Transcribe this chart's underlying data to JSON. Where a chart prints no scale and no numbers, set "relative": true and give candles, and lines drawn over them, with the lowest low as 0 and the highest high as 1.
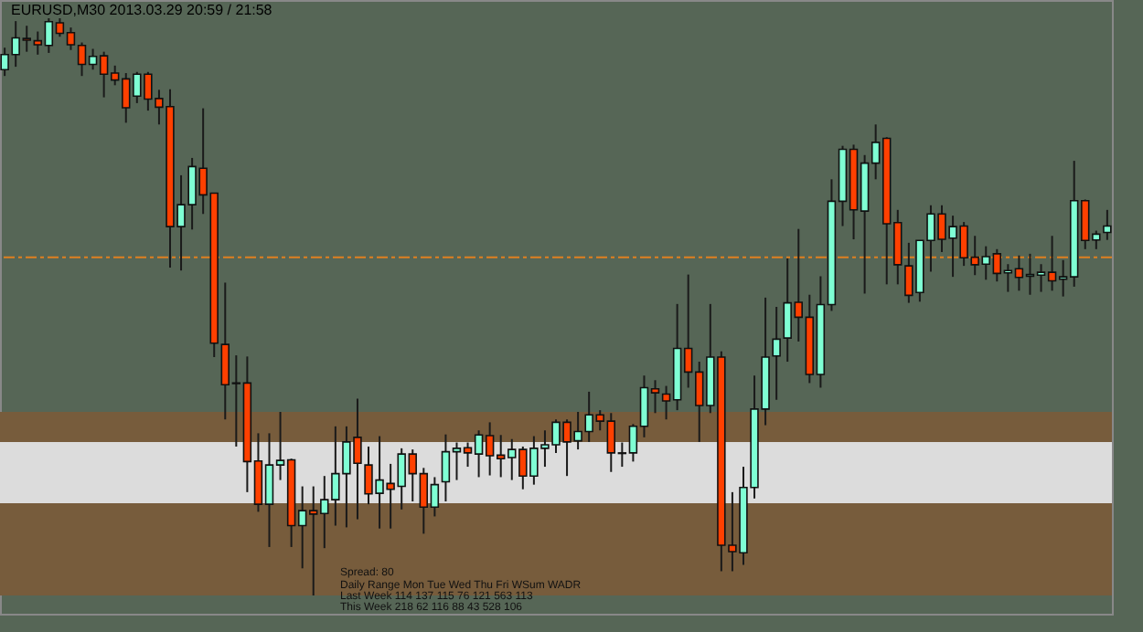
{
  "chart_data": {
    "type": "candlestick",
    "title": "EURUSD,M30  2013.03.29  20:59 / 21:58",
    "relative": true,
    "tick_labels": false,
    "categories": [
      null,
      null,
      null,
      null,
      null,
      null,
      null,
      null,
      null,
      null,
      null,
      null,
      null,
      null,
      null,
      null,
      null,
      null,
      null,
      null,
      null,
      null,
      null,
      null,
      null,
      null,
      null,
      null,
      null,
      null,
      null,
      null,
      null,
      null,
      null,
      null,
      null,
      null,
      null,
      null,
      null,
      null,
      null,
      null,
      null,
      null,
      null,
      null,
      null,
      null,
      null,
      null,
      null,
      null,
      null,
      null,
      null,
      null,
      null,
      null,
      null,
      null,
      null,
      null,
      null,
      null,
      null,
      null,
      null,
      null,
      null,
      null,
      null,
      null,
      null,
      null,
      null,
      null,
      null,
      null,
      null,
      null,
      null,
      null,
      null,
      null,
      null,
      null,
      null,
      null,
      null,
      null,
      null,
      null,
      null,
      null,
      null,
      null,
      null,
      null,
      null
    ],
    "colors": [
      "#7fffd4",
      "#7fffd4",
      "#ff4000",
      "#ff4000",
      "#7fffd4",
      "#ff4000",
      "#ff4000",
      "#ff4000",
      "#7fffd4",
      "#ff4000",
      "#ff4000",
      "#ff4000",
      "#7fffd4",
      "#ff4000",
      "#ff4000",
      "#ff4000",
      "#7fffd4",
      "#7fffd4",
      "#ff4000",
      "#ff4000",
      "#ff4000",
      "#ff4000",
      "#ff4000",
      "#ff4000",
      "#7fffd4",
      "#7fffd4",
      "#ff4000",
      "#7fffd4",
      "#ff4000",
      "#7fffd4",
      "#7fffd4",
      "#7fffd4",
      "#ff4000",
      "#ff4000",
      "#7fffd4",
      "#ff4000",
      "#7fffd4",
      "#ff4000",
      "#ff4000",
      "#7fffd4",
      "#7fffd4",
      "#7fffd4",
      "#ff4000",
      "#7fffd4",
      "#ff4000",
      "#ff4000",
      "#7fffd4",
      "#ff4000",
      "#7fffd4",
      "#7fffd4",
      "#7fffd4",
      "#ff4000",
      "#7fffd4",
      "#7fffd4",
      "#ff4000",
      "#ff4000",
      "#ff4000",
      "#7fffd4",
      "#7fffd4",
      "#ff4000",
      "#ff4000",
      "#7fffd4",
      "#ff4000",
      "#ff4000",
      "#7fffd4",
      "#ff4000",
      "#ff4000",
      "#7fffd4",
      "#7fffd4",
      "#7fffd4",
      "#7fffd4",
      "#7fffd4",
      "#ff4000",
      "#ff4000",
      "#7fffd4",
      "#7fffd4",
      "#7fffd4",
      "#ff4000",
      "#7fffd4",
      "#7fffd4",
      "#ff4000",
      "#ff4000",
      "#ff4000",
      "#7fffd4",
      "#7fffd4",
      "#ff4000",
      "#7fffd4",
      "#ff4000",
      "#ff4000",
      "#7fffd4",
      "#ff4000",
      "#7fffd4",
      "#ff4000",
      "#7fffd4",
      "#7fffd4",
      "#ff4000",
      "#7fffd4",
      "#7fffd4",
      "#ff4000",
      "#7fffd4",
      "#7fffd4"
    ],
    "ohlc": [
      [
        0.911,
        0.949,
        0.9,
        0.937
      ],
      [
        0.937,
        0.995,
        0.916,
        0.966
      ],
      [
        0.965,
        0.987,
        0.942,
        0.962
      ],
      [
        0.961,
        0.977,
        0.937,
        0.954
      ],
      [
        0.953,
        1,
        0.94,
        0.994
      ],
      [
        0.992,
        1,
        0.968,
        0.974
      ],
      [
        0.975,
        0.984,
        0.945,
        0.954
      ],
      [
        0.953,
        0.958,
        0.9,
        0.92
      ],
      [
        0.92,
        0.947,
        0.911,
        0.934
      ],
      [
        0.935,
        0.942,
        0.863,
        0.903
      ],
      [
        0.905,
        0.918,
        0.884,
        0.893
      ],
      [
        0.895,
        0.905,
        0.819,
        0.845
      ],
      [
        0.865,
        0.907,
        0.853,
        0.903
      ],
      [
        0.903,
        0.907,
        0.84,
        0.86
      ],
      [
        0.861,
        0.876,
        0.816,
        0.846
      ],
      [
        0.847,
        0.877,
        0.568,
        0.639
      ],
      [
        0.639,
        0.728,
        0.563,
        0.677
      ],
      [
        0.677,
        0.758,
        0.634,
        0.743
      ],
      [
        0.74,
        0.844,
        0.661,
        0.694
      ],
      [
        0.697,
        0.697,
        0.413,
        0.437
      ],
      [
        0.435,
        0.542,
        0.305,
        0.365
      ],
      [
        0.368,
        0.416,
        0.258,
        0.367
      ],
      [
        0.368,
        0.414,
        0.179,
        0.232
      ],
      [
        0.233,
        0.281,
        0.145,
        0.158
      ],
      [
        0.158,
        0.281,
        0.084,
        0.226
      ],
      [
        0.226,
        0.318,
        0.2,
        0.234
      ],
      [
        0.235,
        0.237,
        0.084,
        0.121
      ],
      [
        0.121,
        0.189,
        0.047,
        0.147
      ],
      [
        0.147,
        0.189,
        0,
        0.141
      ],
      [
        0.142,
        0.207,
        0.082,
        0.166
      ],
      [
        0.166,
        0.293,
        0.121,
        0.211
      ],
      [
        0.211,
        0.293,
        0.118,
        0.266
      ],
      [
        0.274,
        0.341,
        0.132,
        0.229
      ],
      [
        0.226,
        0.258,
        0.158,
        0.176
      ],
      [
        0.177,
        0.276,
        0.116,
        0.2
      ],
      [
        0.194,
        0.228,
        0.116,
        0.184
      ],
      [
        0.189,
        0.255,
        0.149,
        0.245
      ],
      [
        0.245,
        0.253,
        0.163,
        0.211
      ],
      [
        0.211,
        0.221,
        0.107,
        0.153
      ],
      [
        0.153,
        0.205,
        0.137,
        0.192
      ],
      [
        0.197,
        0.279,
        0.163,
        0.249
      ],
      [
        0.249,
        0.265,
        0.2,
        0.255
      ],
      [
        0.256,
        0.265,
        0.223,
        0.247
      ],
      [
        0.245,
        0.286,
        0.205,
        0.278
      ],
      [
        0.277,
        0.3,
        0.208,
        0.242
      ],
      [
        0.243,
        0.278,
        0.205,
        0.237
      ],
      [
        0.239,
        0.271,
        0.2,
        0.253
      ],
      [
        0.253,
        0.258,
        0.184,
        0.207
      ],
      [
        0.207,
        0.276,
        0.192,
        0.255
      ],
      [
        0.255,
        0.286,
        0.223,
        0.261
      ],
      [
        0.261,
        0.305,
        0.247,
        0.3
      ],
      [
        0.3,
        0.305,
        0.207,
        0.266
      ],
      [
        0.268,
        0.318,
        0.253,
        0.284
      ],
      [
        0.284,
        0.353,
        0.266,
        0.313
      ],
      [
        0.313,
        0.321,
        0.286,
        0.302
      ],
      [
        0.302,
        0.316,
        0.214,
        0.247
      ],
      [
        0.247,
        0.265,
        0.223,
        0.246
      ],
      [
        0.247,
        0.297,
        0.232,
        0.293
      ],
      [
        0.293,
        0.381,
        0.274,
        0.36
      ],
      [
        0.358,
        0.373,
        0.316,
        0.351
      ],
      [
        0.349,
        0.363,
        0.305,
        0.337
      ],
      [
        0.339,
        0.505,
        0.321,
        0.428
      ],
      [
        0.428,
        0.556,
        0.36,
        0.387
      ],
      [
        0.387,
        0.405,
        0.266,
        0.329
      ],
      [
        0.329,
        0.505,
        0.316,
        0.413
      ],
      [
        0.413,
        0.423,
        0.042,
        0.087
      ],
      [
        0.087,
        0.179,
        0.042,
        0.076
      ],
      [
        0.074,
        0.223,
        0.053,
        0.187
      ],
      [
        0.187,
        0.381,
        0.168,
        0.323
      ],
      [
        0.323,
        0.516,
        0.295,
        0.413
      ],
      [
        0.415,
        0.5,
        0.339,
        0.444
      ],
      [
        0.446,
        0.584,
        0.405,
        0.507
      ],
      [
        0.508,
        0.635,
        0.44,
        0.482
      ],
      [
        0.482,
        0.521,
        0.368,
        0.383
      ],
      [
        0.383,
        0.553,
        0.36,
        0.504
      ],
      [
        0.504,
        0.721,
        0.493,
        0.683
      ],
      [
        0.683,
        0.779,
        0.64,
        0.773
      ],
      [
        0.773,
        0.781,
        0.617,
        0.668
      ],
      [
        0.666,
        0.763,
        0.523,
        0.749
      ],
      [
        0.749,
        0.816,
        0.721,
        0.785
      ],
      [
        0.792,
        0.794,
        0.539,
        0.644
      ],
      [
        0.646,
        0.668,
        0.539,
        0.573
      ],
      [
        0.571,
        0.611,
        0.507,
        0.52
      ],
      [
        0.525,
        0.615,
        0.509,
        0.615
      ],
      [
        0.615,
        0.676,
        0.561,
        0.661
      ],
      [
        0.661,
        0.676,
        0.595,
        0.617
      ],
      [
        0.619,
        0.658,
        0.552,
        0.639
      ],
      [
        0.64,
        0.647,
        0.571,
        0.585
      ],
      [
        0.586,
        0.623,
        0.555,
        0.573
      ],
      [
        0.574,
        0.605,
        0.547,
        0.587
      ],
      [
        0.592,
        0.6,
        0.544,
        0.558
      ],
      [
        0.559,
        0.574,
        0.526,
        0.563
      ],
      [
        0.566,
        0.589,
        0.528,
        0.551
      ],
      [
        0.553,
        0.592,
        0.521,
        0.556
      ],
      [
        0.555,
        0.574,
        0.526,
        0.56
      ],
      [
        0.56,
        0.623,
        0.528,
        0.545
      ],
      [
        0.548,
        0.581,
        0.518,
        0.552
      ],
      [
        0.552,
        0.753,
        0.535,
        0.684
      ],
      [
        0.684,
        0.686,
        0.6,
        0.615
      ],
      [
        0.616,
        0.632,
        0.6,
        0.626
      ],
      [
        0.629,
        0.668,
        0.616,
        0.64
      ]
    ],
    "bands": [
      {
        "axis": "y",
        "from": 0.266,
        "to": 0.318,
        "color": "#775c3c"
      },
      {
        "axis": "y",
        "from": 0.16,
        "to": 0.266,
        "color": "#dcdcdc"
      },
      {
        "axis": "y",
        "from": 0,
        "to": 0.16,
        "color": "#775c3c"
      }
    ],
    "ref_lines": [
      {
        "axis": "y",
        "value": 0.586,
        "color": "#e08020",
        "line_style": "dashed"
      }
    ],
    "annotations": [
      "Spread: 80",
      "Daily Range   Mon   Tue   Wed   Thu   Fri   WSum   WADR",
      "Last Week   114   137   115   76   121   563   113",
      "This Week   218   62   116   88   43   528   106"
    ]
  }
}
